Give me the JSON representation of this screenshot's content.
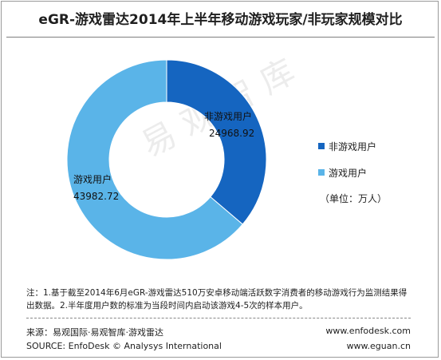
{
  "chart_data": {
    "type": "pie",
    "title": "eGR-游戏雷达2014年上半年移动游戏玩家/非玩家规模对比",
    "unit_text": "（单位：万人）",
    "legend_placement": "right",
    "slices": [
      {
        "name": "非游戏用户",
        "value": 24968.92,
        "label_name": "非游戏用户",
        "label_value": "24968.92",
        "color": "#1565c0"
      },
      {
        "name": "游戏用户",
        "value": 43982.72,
        "label_name": "游戏用户",
        "label_value": "43982.72",
        "color": "#5ab4e8"
      }
    ]
  },
  "watermark": "易观智库",
  "notes": [
    "注：1.基于截至2014年6月eGR-游戏雷达510万安卓移动端活跃数字消费者的移动游戏行为监测结果得",
    "出数据。2.半年度用户数的标准为当段时间内启动该游戏4-5次的样本用户。"
  ],
  "source": {
    "cn": "来源：易观国际·易观智库·游戏雷达",
    "en": "SOURCE: EnfoDesk © Analysys International",
    "url1": "www.enfodesk.com",
    "url2": "www.eguan.cn"
  }
}
